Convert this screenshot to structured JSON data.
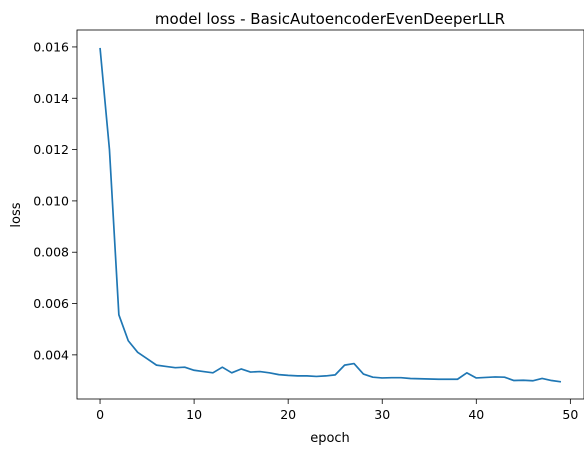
{
  "chart_data": {
    "type": "line",
    "title": "model loss - BasicAutoencoderEvenDeeperLLR",
    "xlabel": "epoch",
    "ylabel": "loss",
    "xlim": [
      -2.45,
      51.45
    ],
    "ylim": [
      0.00228,
      0.01666
    ],
    "xticks": [
      0,
      10,
      20,
      30,
      40,
      50
    ],
    "yticks": [
      0.004,
      0.006,
      0.008,
      0.01,
      0.012,
      0.014,
      0.016
    ],
    "xtick_labels": [
      "0",
      "10",
      "20",
      "30",
      "40",
      "50"
    ],
    "ytick_labels": [
      "0.004",
      "0.006",
      "0.008",
      "0.010",
      "0.012",
      "0.014",
      "0.016"
    ],
    "grid": false,
    "line_color": "#1f77b4",
    "series": [
      {
        "x": [
          0,
          1,
          2,
          3,
          4,
          5,
          6,
          7,
          8,
          9,
          10,
          11,
          12,
          13,
          14,
          15,
          16,
          17,
          18,
          19,
          20,
          21,
          22,
          23,
          24,
          25,
          26,
          27,
          28,
          29,
          30,
          31,
          32,
          33,
          34,
          35,
          36,
          37,
          38,
          39,
          40,
          41,
          42,
          43,
          44,
          45,
          46,
          47,
          48,
          49
        ],
        "values": [
          0.01596,
          0.012,
          0.00556,
          0.00455,
          0.0041,
          0.00385,
          0.0036,
          0.00355,
          0.0035,
          0.00352,
          0.0034,
          0.00335,
          0.0033,
          0.00352,
          0.0033,
          0.00345,
          0.00333,
          0.00335,
          0.0033,
          0.00323,
          0.0032,
          0.00318,
          0.00318,
          0.00316,
          0.00318,
          0.00322,
          0.0036,
          0.00366,
          0.00325,
          0.00313,
          0.0031,
          0.00311,
          0.00311,
          0.00308,
          0.00307,
          0.00306,
          0.00305,
          0.00305,
          0.00305,
          0.0033,
          0.0031,
          0.00312,
          0.00314,
          0.00313,
          0.003,
          0.00301,
          0.00299,
          0.00308,
          0.003,
          0.00295
        ]
      }
    ]
  }
}
